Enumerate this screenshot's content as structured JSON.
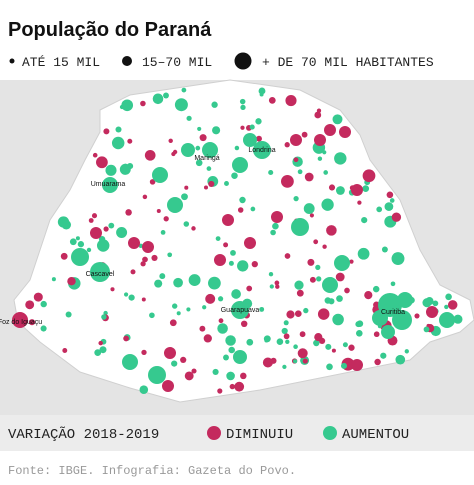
{
  "title": "População do Paraná",
  "size_legend": [
    "ATÉ 15 MIL",
    "15–70 MIL",
    "+ DE 70 MIL HABITANTES"
  ],
  "color_legend": {
    "title": "VARIAÇÃO 2018-2019",
    "items": [
      {
        "label": "DIMINUIU",
        "color": "#c42a5e"
      },
      {
        "label": "AUMENTOU",
        "color": "#36c98f"
      }
    ]
  },
  "cities": [
    "Maringá",
    "Londrina",
    "Umuarama",
    "Cascavel",
    "Guarapuava",
    "Curitiba",
    "Foz do Iguaçu"
  ],
  "source": "Fonte: IBGE. Infografia: Gazeta do Povo."
}
